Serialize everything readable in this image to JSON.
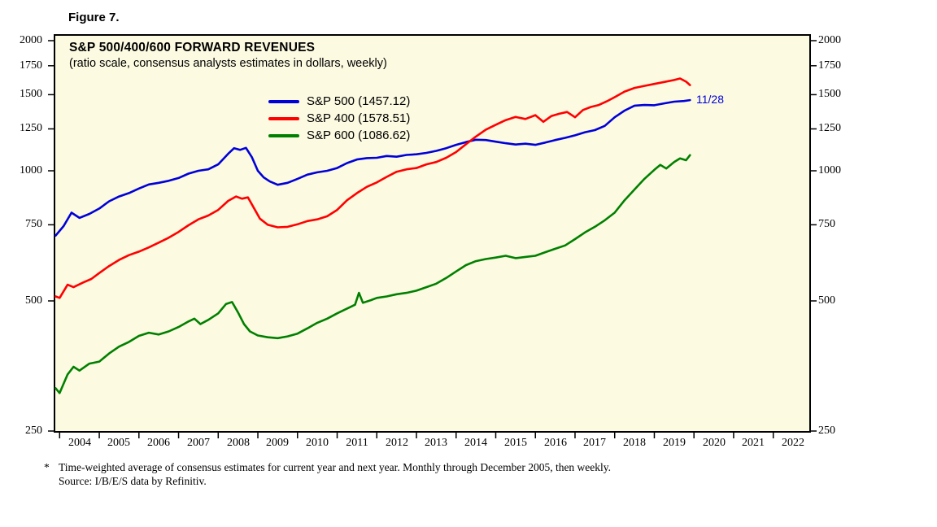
{
  "figure_label": "Figure 7.",
  "footnote": {
    "marker": "*",
    "line1": "Time-weighted average of consensus estimates for current year and next year. Monthly through December 2005, then weekly.",
    "line2": "Source: I/B/E/S data by Refinitiv."
  },
  "chart_data": {
    "type": "line",
    "title": "S&P 500/400/600 FORWARD REVENUES",
    "subtitle": "(ratio scale, consensus analysts estimates in dollars, weekly)",
    "y_scale": "log",
    "ylim": [
      250,
      2000
    ],
    "y_ticks": [
      2000,
      1750,
      1500,
      1250,
      1000,
      750,
      500,
      250
    ],
    "xlim": [
      2003.85,
      2022.95
    ],
    "x_tick_years": [
      2004,
      2005,
      2006,
      2007,
      2008,
      2009,
      2010,
      2011,
      2012,
      2013,
      2014,
      2015,
      2016,
      2017,
      2018,
      2019,
      2020,
      2021,
      2022
    ],
    "plot_background": "#FCFAE1",
    "grid": false,
    "legend_position": "inside-upper-left",
    "annotation": {
      "text": "11/28",
      "x": 2019.9,
      "y": 1457.12,
      "color": "#0000D8"
    },
    "legend": [
      {
        "label": "S&P 500 (1457.12)",
        "color": "#0000D8"
      },
      {
        "label": "S&P 400 (1578.51)",
        "color": "#FF0000"
      },
      {
        "label": "S&P 600 (1086.62)",
        "color": "#008000"
      }
    ],
    "series": [
      {
        "name": "S&P 500",
        "color": "#0000D8",
        "last_value": 1457.12,
        "last_date_label": "11/28",
        "x": [
          2003.9,
          2004.1,
          2004.3,
          2004.5,
          2004.75,
          2005.0,
          2005.25,
          2005.5,
          2005.75,
          2006.0,
          2006.25,
          2006.5,
          2006.75,
          2007.0,
          2007.25,
          2007.5,
          2007.75,
          2008.0,
          2008.25,
          2008.4,
          2008.55,
          2008.7,
          2008.85,
          2009.0,
          2009.15,
          2009.3,
          2009.5,
          2009.75,
          2010.0,
          2010.25,
          2010.5,
          2010.75,
          2011.0,
          2011.25,
          2011.5,
          2011.75,
          2012.0,
          2012.25,
          2012.5,
          2012.75,
          2013.0,
          2013.25,
          2013.5,
          2013.75,
          2014.0,
          2014.25,
          2014.5,
          2014.75,
          2015.0,
          2015.25,
          2015.5,
          2015.75,
          2016.0,
          2016.25,
          2016.5,
          2016.75,
          2017.0,
          2017.25,
          2017.5,
          2017.75,
          2018.0,
          2018.25,
          2018.5,
          2018.75,
          2019.0,
          2019.25,
          2019.5,
          2019.75,
          2019.9
        ],
        "y": [
          708,
          745,
          800,
          778,
          795,
          818,
          850,
          872,
          888,
          910,
          930,
          938,
          948,
          962,
          985,
          1000,
          1008,
          1035,
          1095,
          1128,
          1118,
          1130,
          1075,
          1000,
          965,
          945,
          928,
          938,
          958,
          980,
          992,
          1000,
          1015,
          1042,
          1062,
          1070,
          1072,
          1082,
          1078,
          1088,
          1092,
          1100,
          1112,
          1128,
          1148,
          1165,
          1180,
          1178,
          1168,
          1158,
          1150,
          1155,
          1148,
          1162,
          1178,
          1192,
          1208,
          1228,
          1242,
          1270,
          1330,
          1378,
          1415,
          1420,
          1418,
          1432,
          1445,
          1450,
          1457.12
        ]
      },
      {
        "name": "S&P 400",
        "color": "#FF0000",
        "last_value": 1578.51,
        "x": [
          2003.9,
          2004.0,
          2004.2,
          2004.35,
          2004.6,
          2004.8,
          2005.0,
          2005.25,
          2005.5,
          2005.75,
          2006.0,
          2006.25,
          2006.5,
          2006.75,
          2007.0,
          2007.25,
          2007.5,
          2007.75,
          2008.0,
          2008.25,
          2008.45,
          2008.6,
          2008.75,
          2008.9,
          2009.05,
          2009.25,
          2009.5,
          2009.75,
          2010.0,
          2010.25,
          2010.5,
          2010.75,
          2011.0,
          2011.25,
          2011.5,
          2011.75,
          2012.0,
          2012.25,
          2012.5,
          2012.75,
          2013.0,
          2013.25,
          2013.5,
          2013.75,
          2014.0,
          2014.25,
          2014.5,
          2014.75,
          2015.0,
          2015.25,
          2015.5,
          2015.75,
          2016.0,
          2016.2,
          2016.4,
          2016.6,
          2016.8,
          2017.0,
          2017.2,
          2017.4,
          2017.6,
          2017.8,
          2018.0,
          2018.25,
          2018.5,
          2018.75,
          2019.0,
          2019.25,
          2019.5,
          2019.65,
          2019.8,
          2019.9
        ],
        "y": [
          512,
          508,
          545,
          538,
          552,
          562,
          580,
          602,
          622,
          638,
          650,
          665,
          682,
          700,
          722,
          748,
          772,
          788,
          812,
          852,
          872,
          862,
          868,
          820,
          775,
          750,
          740,
          742,
          752,
          765,
          772,
          785,
          812,
          855,
          888,
          918,
          940,
          968,
          995,
          1008,
          1015,
          1035,
          1048,
          1072,
          1105,
          1152,
          1200,
          1245,
          1278,
          1310,
          1332,
          1318,
          1345,
          1298,
          1338,
          1355,
          1368,
          1330,
          1382,
          1405,
          1420,
          1448,
          1480,
          1525,
          1555,
          1572,
          1588,
          1605,
          1622,
          1635,
          1608,
          1578.51
        ]
      },
      {
        "name": "S&P 600",
        "color": "#008000",
        "last_value": 1086.62,
        "x": [
          2003.9,
          2004.0,
          2004.2,
          2004.35,
          2004.5,
          2004.75,
          2005.0,
          2005.25,
          2005.5,
          2005.75,
          2006.0,
          2006.25,
          2006.5,
          2006.75,
          2007.0,
          2007.25,
          2007.4,
          2007.55,
          2007.75,
          2008.0,
          2008.2,
          2008.35,
          2008.5,
          2008.65,
          2008.8,
          2009.0,
          2009.25,
          2009.5,
          2009.75,
          2010.0,
          2010.25,
          2010.5,
          2010.75,
          2011.0,
          2011.25,
          2011.45,
          2011.55,
          2011.65,
          2011.85,
          2012.0,
          2012.25,
          2012.5,
          2012.75,
          2013.0,
          2013.25,
          2013.5,
          2013.75,
          2014.0,
          2014.25,
          2014.5,
          2014.75,
          2015.0,
          2015.25,
          2015.5,
          2015.75,
          2016.0,
          2016.25,
          2016.5,
          2016.75,
          2017.0,
          2017.25,
          2017.5,
          2017.75,
          2018.0,
          2018.25,
          2018.5,
          2018.75,
          2019.0,
          2019.15,
          2019.3,
          2019.5,
          2019.65,
          2019.8,
          2019.9
        ],
        "y": [
          314,
          306,
          338,
          352,
          345,
          358,
          362,
          378,
          392,
          402,
          415,
          422,
          418,
          425,
          435,
          448,
          455,
          442,
          452,
          468,
          492,
          497,
          470,
          442,
          425,
          416,
          412,
          410,
          414,
          420,
          432,
          445,
          455,
          468,
          480,
          490,
          522,
          495,
          502,
          508,
          512,
          518,
          522,
          528,
          538,
          548,
          565,
          585,
          605,
          618,
          625,
          630,
          636,
          628,
          632,
          636,
          648,
          660,
          672,
          695,
          720,
          742,
          768,
          800,
          855,
          905,
          958,
          1005,
          1032,
          1012,
          1048,
          1068,
          1058,
          1086.62
        ]
      }
    ]
  }
}
